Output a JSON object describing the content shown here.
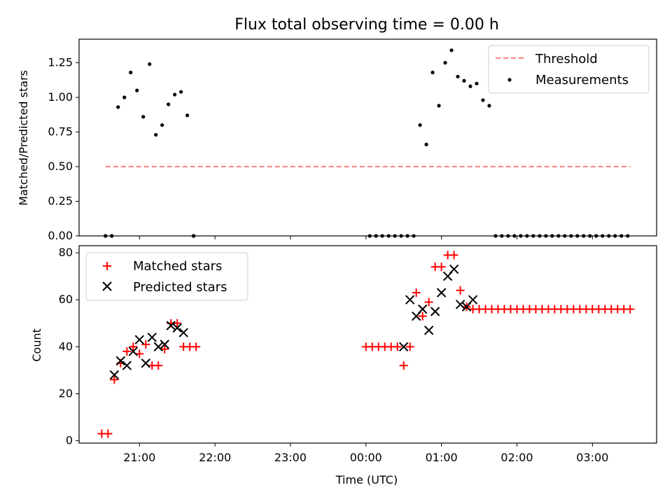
{
  "chart_data": [
    {
      "type": "scatter",
      "title": "Flux total observing time = 0.00 h",
      "xlabel": "",
      "ylabel": "Matched/Predicted stars",
      "ylim": [
        0,
        1.42
      ],
      "yticks": [
        "0.00",
        "0.25",
        "0.50",
        "0.75",
        "1.00",
        "1.25"
      ],
      "ytick_values": [
        0,
        0.25,
        0.5,
        0.75,
        1.0,
        1.25
      ],
      "xlim": [
        "20:12",
        "03:51"
      ],
      "legend_position": "top-right",
      "series": [
        {
          "name": "Threshold",
          "style": "dashed-line",
          "color": "#ff7f7f",
          "x": [
            "20:33",
            "03:30"
          ],
          "y": [
            0.5,
            0.5
          ]
        },
        {
          "name": "Measurements",
          "style": "dot",
          "color": "#000000",
          "x": [
            "20:33",
            "20:38",
            "20:43",
            "20:48",
            "20:53",
            "20:58",
            "21:03",
            "21:08",
            "21:13",
            "21:18",
            "21:23",
            "21:28",
            "21:33",
            "21:38",
            "21:43",
            "00:33",
            "00:38",
            "00:43",
            "00:48",
            "00:53",
            "00:58",
            "01:03",
            "01:08",
            "01:13",
            "01:18",
            "01:23",
            "01:28",
            "01:33",
            "01:38",
            "01:43",
            "01:48",
            "01:53",
            "01:58",
            "02:03",
            "02:08",
            "02:13",
            "02:18",
            "02:23",
            "02:28",
            "02:33",
            "02:38",
            "02:43",
            "02:48",
            "02:53",
            "02:58",
            "03:03",
            "03:08",
            "03:13",
            "03:18",
            "03:23",
            "03:28",
            "20:33",
            "20:38",
            "21:43",
            "00:03",
            "00:08",
            "00:13",
            "00:18",
            "00:23",
            "00:28"
          ],
          "y": [
            0,
            0,
            0.93,
            1.0,
            1.18,
            1.05,
            0.86,
            1.24,
            0.73,
            0.8,
            0.95,
            1.02,
            1.04,
            0.87,
            0,
            0,
            0,
            0.8,
            0.66,
            1.18,
            0.94,
            1.25,
            1.34,
            1.15,
            1.12,
            1.08,
            1.1,
            0.98,
            0.94,
            0,
            0,
            0,
            0,
            0,
            0,
            0,
            0,
            0,
            0,
            0,
            0,
            0,
            0,
            0,
            0,
            0,
            0,
            0,
            0,
            0,
            0,
            0,
            0,
            0,
            0,
            0,
            0,
            0,
            0,
            0
          ]
        }
      ]
    },
    {
      "type": "scatter",
      "title": "",
      "xlabel": "Time (UTC)",
      "ylabel": "Count",
      "ylim": [
        -1,
        83
      ],
      "yticks": [
        "0",
        "20",
        "40",
        "60",
        "80"
      ],
      "ytick_values": [
        0,
        20,
        40,
        60,
        80
      ],
      "xlim": [
        "20:12",
        "03:51"
      ],
      "xticks": [
        "21:00",
        "22:00",
        "23:00",
        "00:00",
        "01:00",
        "02:00",
        "03:00"
      ],
      "legend_position": "top-left",
      "series": [
        {
          "name": "Matched stars",
          "style": "plus",
          "color": "#ff0000",
          "x": [
            "20:30",
            "20:35",
            "20:40",
            "20:45",
            "20:50",
            "20:55",
            "21:00",
            "21:05",
            "21:10",
            "21:15",
            "21:20",
            "21:25",
            "21:30",
            "21:35",
            "21:40",
            "21:45",
            "00:00",
            "00:05",
            "00:10",
            "00:15",
            "00:20",
            "00:25",
            "00:30",
            "00:35",
            "00:40",
            "00:45",
            "00:50",
            "00:55",
            "01:00",
            "01:05",
            "01:10",
            "01:15",
            "01:20",
            "01:25",
            "01:30",
            "01:35",
            "01:40",
            "01:45",
            "01:50",
            "01:55",
            "02:00",
            "02:05",
            "02:10",
            "02:15",
            "02:20",
            "02:25",
            "02:30",
            "02:35",
            "02:40",
            "02:45",
            "02:50",
            "02:55",
            "03:00",
            "03:05",
            "03:10",
            "03:15",
            "03:20",
            "03:25",
            "03:30"
          ],
          "y": [
            3,
            3,
            26,
            33,
            38,
            40,
            37,
            41,
            32,
            32,
            39,
            50,
            50,
            40,
            40,
            40,
            40,
            40,
            40,
            40,
            40,
            40,
            32,
            40,
            63,
            53,
            59,
            74,
            74,
            79,
            79,
            64,
            57,
            56,
            56,
            56,
            56,
            56,
            56,
            56,
            56,
            56,
            56,
            56,
            56,
            56,
            56,
            56,
            56,
            56,
            56,
            56,
            56,
            56,
            56,
            56,
            56,
            56,
            56
          ]
        },
        {
          "name": "Predicted stars",
          "style": "x",
          "color": "#000000",
          "x": [
            "20:40",
            "20:45",
            "20:50",
            "20:55",
            "21:00",
            "21:05",
            "21:10",
            "21:15",
            "21:20",
            "21:25",
            "21:30",
            "21:35",
            "00:30",
            "00:35",
            "00:40",
            "00:45",
            "00:50",
            "00:55",
            "01:00",
            "01:05",
            "01:10",
            "01:15",
            "01:20",
            "01:25"
          ],
          "y": [
            28,
            34,
            32,
            38,
            43,
            33,
            44,
            40,
            41,
            49,
            48,
            46,
            40,
            60,
            53,
            56,
            47,
            55,
            63,
            70,
            73,
            58,
            57,
            60
          ]
        }
      ]
    }
  ]
}
